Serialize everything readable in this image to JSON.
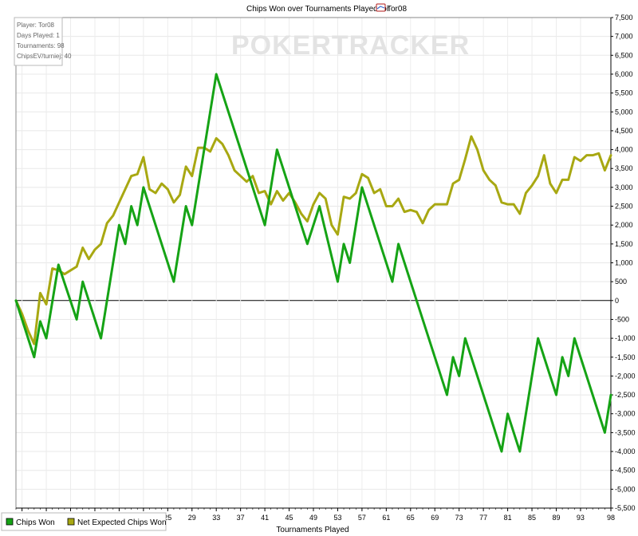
{
  "chart_data": {
    "type": "line",
    "title": "Chips Won over Tournaments Played for",
    "player_name": "Tor08",
    "xlabel": "Tournaments Played",
    "ylabel": "",
    "watermark": "POKERTRACKER",
    "info_box": [
      "Player: Tor08",
      "Days Played: 1",
      "Tournaments: 98",
      "ChipsEV/turniej: 40"
    ],
    "ylim": [
      -5500,
      7500
    ],
    "y_ticks": [
      7500,
      7000,
      6500,
      6000,
      5500,
      5000,
      4500,
      4000,
      3500,
      3000,
      2500,
      2000,
      1500,
      1000,
      500,
      0,
      -500,
      -1000,
      -1500,
      -2000,
      -2500,
      -3000,
      -3500,
      -4000,
      -4500,
      -5000,
      -5500
    ],
    "y_tick_labels": [
      "7,500",
      "7,000",
      "6,500",
      "6,000",
      "5,500",
      "5,000",
      "4,500",
      "4,000",
      "3,500",
      "3,000",
      "2,500",
      "2,000",
      "1,500",
      "1,000",
      "500",
      "0",
      "-500",
      "-1,000",
      "-1,500",
      "-2,000",
      "-2,500",
      "-3,000",
      "-3,500",
      "-4,000",
      "-4,500",
      "-5,000",
      "-5,500"
    ],
    "xlim": [
      0,
      98
    ],
    "x_ticks": [
      1,
      5,
      9,
      13,
      17,
      21,
      25,
      29,
      33,
      37,
      41,
      45,
      49,
      53,
      57,
      61,
      65,
      69,
      73,
      77,
      81,
      85,
      89,
      93,
      98
    ],
    "grid": true,
    "legend_position": "bottom-left",
    "series": [
      {
        "name": "Chips Won",
        "color": "#15a315",
        "x": [
          0,
          3,
          4,
          5,
          7,
          10,
          11,
          14,
          17,
          18,
          19,
          20,
          21,
          26,
          28,
          29,
          33,
          41,
          43,
          48,
          50,
          53,
          54,
          55,
          57,
          62,
          63,
          71,
          72,
          73,
          74,
          80,
          81,
          83,
          86,
          89,
          90,
          91,
          92,
          97,
          98
        ],
        "values": [
          0,
          -1500,
          -550,
          -1000,
          950,
          -500,
          500,
          -1000,
          2000,
          1500,
          2500,
          2000,
          3000,
          500,
          2500,
          2000,
          6000,
          2000,
          4000,
          1500,
          2500,
          500,
          1500,
          1000,
          3000,
          500,
          1500,
          -2500,
          -1500,
          -2000,
          -1000,
          -4000,
          -3000,
          -4000,
          -1000,
          -2500,
          -1500,
          -2000,
          -1000,
          -3500,
          -2500
        ]
      },
      {
        "name": "Net Expected Chips Won",
        "color": "#a8a812",
        "x": [
          0,
          1,
          2,
          3,
          4,
          5,
          6,
          7,
          8,
          9,
          10,
          11,
          12,
          13,
          14,
          15,
          16,
          17,
          18,
          19,
          20,
          21,
          22,
          23,
          24,
          25,
          26,
          27,
          28,
          29,
          30,
          31,
          32,
          33,
          34,
          35,
          36,
          37,
          38,
          39,
          40,
          41,
          42,
          43,
          44,
          45,
          46,
          47,
          48,
          49,
          50,
          51,
          52,
          53,
          54,
          55,
          56,
          57,
          58,
          59,
          60,
          61,
          62,
          63,
          64,
          65,
          66,
          67,
          68,
          69,
          70,
          71,
          72,
          73,
          74,
          75,
          76,
          77,
          78,
          79,
          80,
          81,
          82,
          83,
          84,
          85,
          86,
          87,
          88,
          89,
          90,
          91,
          92,
          93,
          94,
          95,
          96,
          97,
          98
        ],
        "values": [
          0,
          -350,
          -800,
          -1150,
          200,
          -100,
          850,
          800,
          700,
          800,
          900,
          1400,
          1100,
          1350,
          1500,
          2050,
          2250,
          2600,
          2950,
          3300,
          3350,
          3800,
          2950,
          2850,
          3100,
          2950,
          2600,
          2800,
          3550,
          3300,
          4050,
          4050,
          3950,
          4300,
          4150,
          3850,
          3450,
          3300,
          3150,
          3300,
          2850,
          2900,
          2550,
          2900,
          2650,
          2850,
          2600,
          2300,
          2100,
          2550,
          2850,
          2700,
          2000,
          1750,
          2750,
          2700,
          2850,
          3350,
          3250,
          2850,
          2950,
          2500,
          2500,
          2700,
          2350,
          2400,
          2350,
          2050,
          2400,
          2550,
          2550,
          2550,
          3100,
          3200,
          3750,
          4350,
          4000,
          3450,
          3200,
          3050,
          2600,
          2550,
          2550,
          2300,
          2850,
          3050,
          3300,
          3850,
          3100,
          2850,
          3200,
          3200,
          3800,
          3700,
          3850,
          3850,
          3900,
          3450,
          3850
        ]
      }
    ]
  }
}
